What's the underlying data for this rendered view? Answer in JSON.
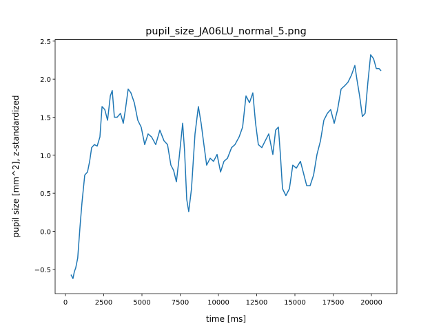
{
  "chart_data": {
    "type": "line",
    "title": "pupil_size_JA06LU_normal_5.png",
    "x_label": "time [ms]",
    "y_label": "pupil size [mm^2], z-standardized",
    "x": [
      360,
      490,
      580,
      670,
      800,
      950,
      1080,
      1260,
      1440,
      1580,
      1710,
      1890,
      2070,
      2250,
      2390,
      2570,
      2750,
      2930,
      3060,
      3200,
      3380,
      3600,
      3780,
      3920,
      4100,
      4280,
      4500,
      4730,
      4950,
      5180,
      5400,
      5630,
      5900,
      6170,
      6440,
      6670,
      6890,
      7070,
      7250,
      7430,
      7660,
      7790,
      7930,
      8060,
      8240,
      8470,
      8690,
      8870,
      9050,
      9230,
      9460,
      9680,
      9910,
      10140,
      10360,
      10590,
      10860,
      11080,
      11350,
      11580,
      11800,
      12030,
      12250,
      12430,
      12610,
      12840,
      13060,
      13290,
      13560,
      13740,
      13920,
      14050,
      14190,
      14410,
      14640,
      14860,
      15090,
      15360,
      15540,
      15770,
      15990,
      16220,
      16440,
      16670,
      16890,
      17120,
      17340,
      17570,
      17790,
      18020,
      18240,
      18470,
      18690,
      18920,
      19050,
      19230,
      19410,
      19590,
      19770,
      19950,
      20140,
      20320,
      20500,
      20630
    ],
    "series": [
      {
        "name": "pupil size",
        "color": "#1f77b4",
        "values": [
          -0.57,
          -0.62,
          -0.53,
          -0.48,
          -0.35,
          0.06,
          0.38,
          0.74,
          0.78,
          0.92,
          1.1,
          1.14,
          1.12,
          1.24,
          1.64,
          1.6,
          1.46,
          1.78,
          1.85,
          1.5,
          1.5,
          1.55,
          1.42,
          1.6,
          1.87,
          1.82,
          1.69,
          1.46,
          1.37,
          1.14,
          1.28,
          1.24,
          1.14,
          1.33,
          1.19,
          1.14,
          0.87,
          0.8,
          0.65,
          0.96,
          1.42,
          1.05,
          0.42,
          0.26,
          0.56,
          1.28,
          1.64,
          1.42,
          1.14,
          0.87,
          0.96,
          0.92,
          1.01,
          0.78,
          0.92,
          0.96,
          1.1,
          1.14,
          1.24,
          1.37,
          1.78,
          1.69,
          1.82,
          1.42,
          1.14,
          1.1,
          1.19,
          1.28,
          1.01,
          1.33,
          1.37,
          1.01,
          0.56,
          0.47,
          0.56,
          0.87,
          0.83,
          0.92,
          0.78,
          0.6,
          0.6,
          0.74,
          1.01,
          1.19,
          1.46,
          1.55,
          1.6,
          1.42,
          1.6,
          1.87,
          1.91,
          1.96,
          2.05,
          2.18,
          2.0,
          1.78,
          1.51,
          1.55,
          1.96,
          2.32,
          2.27,
          2.14,
          2.14,
          2.11
        ]
      }
    ],
    "xlim": [
      -676,
      21667
    ],
    "ylim": [
      -0.82,
      2.52
    ],
    "xticks": [
      0,
      2500,
      5000,
      7500,
      10000,
      12500,
      15000,
      17500,
      20000
    ],
    "yticks": [
      {
        "value": -0.5,
        "label": "−0.5"
      },
      {
        "value": 0,
        "label": "0.0"
      },
      0.5,
      {
        "value": 1,
        "label": "1.0"
      },
      1.5,
      {
        "value": 2,
        "label": "2.0"
      },
      2.5
    ],
    "grid": false
  }
}
